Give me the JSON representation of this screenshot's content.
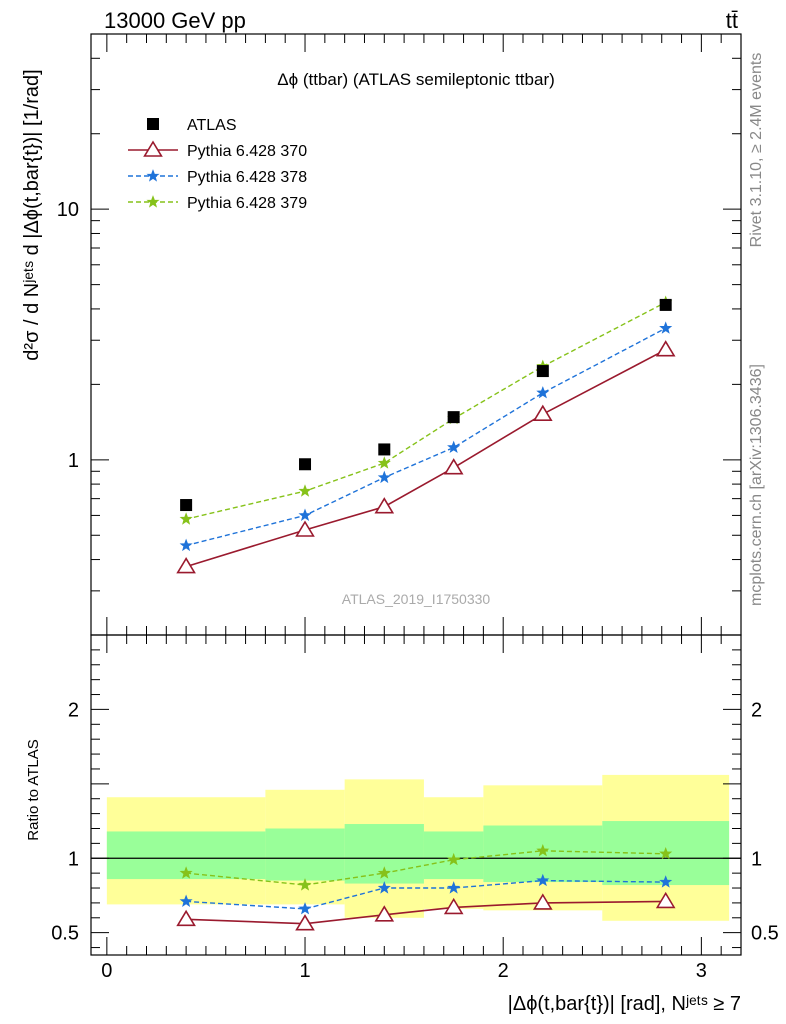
{
  "header": {
    "energy": "13000 GeV pp",
    "process": "tt̄"
  },
  "side_labels": {
    "rivet": "Rivet 3.1.10, ≥ 2.4M events",
    "mcplots": "mcplots.cern.ch [arXiv:1306.3436]"
  },
  "watermark": "ATLAS_2019_I1750330",
  "colors": {
    "data": "#000000",
    "p370": "#9a1a2e",
    "p378": "#1f73d9",
    "p379": "#86c21a",
    "band_inner": "#99ff99",
    "band_outer": "#ffff99"
  },
  "chart_data": [
    {
      "type": "line",
      "title": "Δϕ (ttbar) (ATLAS semileptonic ttbar)",
      "ylabel": "d²σ / d Nʲᵉᵗˢ d |Δϕ(t,bar{t})| [1/rad]",
      "xlim": [
        -0.08,
        3.2
      ],
      "ylim": [
        0.2,
        50
      ],
      "yscale": "log",
      "y_ticks": [
        "1",
        "10"
      ],
      "legend_position": "top-left",
      "x": [
        0.4,
        1.0,
        1.4,
        1.75,
        2.2,
        2.82
      ],
      "x_bins": [
        [
          0.0,
          0.8
        ],
        [
          0.8,
          1.2
        ],
        [
          1.2,
          1.6
        ],
        [
          1.6,
          1.9
        ],
        [
          1.9,
          2.5
        ],
        [
          2.5,
          3.14
        ]
      ],
      "series": [
        {
          "name": "ATLAS",
          "key": "data",
          "marker": "square",
          "values": [
            0.66,
            0.96,
            1.1,
            1.48,
            2.26,
            4.15
          ]
        },
        {
          "name": "Pythia 6.428 370",
          "key": "p370",
          "marker": "triangle",
          "line": "solid",
          "values": [
            0.375,
            0.525,
            0.65,
            0.93,
            1.52,
            2.75
          ]
        },
        {
          "name": "Pythia 6.428 378",
          "key": "p378",
          "marker": "star",
          "line": "dashed",
          "values": [
            0.455,
            0.6,
            0.85,
            1.12,
            1.85,
            3.35
          ]
        },
        {
          "name": "Pythia 6.428 379",
          "key": "p379",
          "marker": "star",
          "line": "dashed",
          "values": [
            0.58,
            0.75,
            0.97,
            1.46,
            2.36,
            4.25
          ]
        }
      ]
    },
    {
      "type": "line",
      "ylabel": "Ratio to ATLAS",
      "xlabel": "|Δϕ(t,bar{t})| [rad], Nʲᵉᵗˢ ≥ 7",
      "xlim": [
        -0.08,
        3.2
      ],
      "ylim": [
        0.35,
        2.5
      ],
      "x_ticks": [
        "0",
        "1",
        "2",
        "3"
      ],
      "y_ticks": [
        "0.5",
        "1",
        "2"
      ],
      "reference_line": 1,
      "x": [
        0.4,
        1.0,
        1.4,
        1.75,
        2.2,
        2.82
      ],
      "bands": [
        {
          "x_bins": [
            [
              0.0,
              0.8
            ],
            [
              0.8,
              1.2
            ],
            [
              1.2,
              1.6
            ],
            [
              1.6,
              1.9
            ],
            [
              1.9,
              2.5
            ],
            [
              2.5,
              3.14
            ]
          ],
          "outer_low": [
            0.69,
            0.69,
            0.6,
            0.66,
            0.65,
            0.58
          ],
          "outer_high": [
            1.41,
            1.46,
            1.53,
            1.41,
            1.49,
            1.56
          ],
          "inner_low": [
            0.86,
            0.85,
            0.83,
            0.86,
            0.84,
            0.82
          ],
          "inner_high": [
            1.18,
            1.2,
            1.23,
            1.18,
            1.22,
            1.25
          ]
        }
      ],
      "series": [
        {
          "name": "Pythia 6.428 370",
          "key": "p370",
          "marker": "triangle",
          "line": "solid",
          "values": [
            0.59,
            0.56,
            0.62,
            0.67,
            0.7,
            0.71
          ]
        },
        {
          "name": "Pythia 6.428 378",
          "key": "p378",
          "marker": "star",
          "line": "dashed",
          "values": [
            0.71,
            0.66,
            0.8,
            0.8,
            0.85,
            0.84
          ]
        },
        {
          "name": "Pythia 6.428 379",
          "key": "p379",
          "marker": "star",
          "line": "dashed",
          "values": [
            0.9,
            0.82,
            0.9,
            0.99,
            1.05,
            1.03
          ]
        }
      ]
    }
  ]
}
